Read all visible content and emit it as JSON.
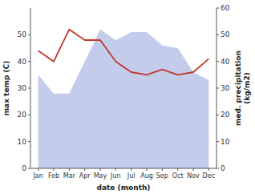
{
  "chart_data": {
    "type": "line",
    "x_label": "date (month)",
    "y_label": "max temp (C)",
    "y2_label": "med. precipitation\n(kg/m2)",
    "categories": [
      "Jan",
      "Feb",
      "Mar",
      "Apr",
      "May",
      "Jun",
      "Jul",
      "Aug",
      "Sep",
      "Oct",
      "Nov",
      "Dec"
    ],
    "series": [
      {
        "type": "area",
        "color": "#b8c4e8",
        "values": [
          35,
          28,
          28,
          40,
          52,
          48,
          51,
          51,
          46,
          45,
          36,
          33
        ]
      },
      {
        "type": "line",
        "color": "#c0392b",
        "values": [
          44,
          40,
          52,
          48,
          48,
          40,
          36,
          35,
          37,
          35,
          36,
          41
        ]
      }
    ],
    "ylim": [
      0,
      60
    ],
    "yticks": [
      0,
      10,
      20,
      30,
      40,
      50
    ],
    "y2lim": [
      0,
      60
    ],
    "y2ticks": [
      0,
      10,
      20,
      30,
      40,
      50,
      60
    ]
  }
}
